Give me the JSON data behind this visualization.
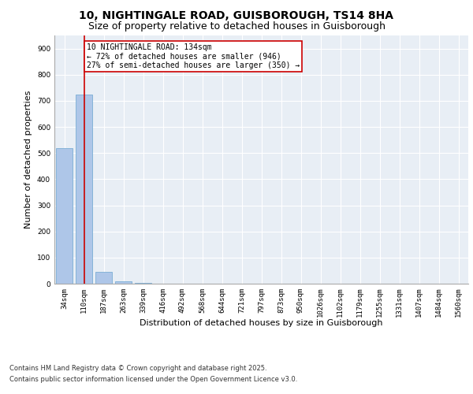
{
  "title_line1": "10, NIGHTINGALE ROAD, GUISBOROUGH, TS14 8HA",
  "title_line2": "Size of property relative to detached houses in Guisborough",
  "xlabel": "Distribution of detached houses by size in Guisborough",
  "ylabel": "Number of detached properties",
  "categories": [
    "34sqm",
    "110sqm",
    "187sqm",
    "263sqm",
    "339sqm",
    "416sqm",
    "492sqm",
    "568sqm",
    "644sqm",
    "721sqm",
    "797sqm",
    "873sqm",
    "950sqm",
    "1026sqm",
    "1102sqm",
    "1179sqm",
    "1255sqm",
    "1331sqm",
    "1407sqm",
    "1484sqm",
    "1560sqm"
  ],
  "values": [
    520,
    725,
    45,
    8,
    2,
    0,
    0,
    0,
    0,
    0,
    0,
    0,
    0,
    0,
    0,
    0,
    0,
    0,
    0,
    0,
    0
  ],
  "bar_color": "#aec6e8",
  "bar_edgecolor": "#7badd4",
  "vline_x": 1,
  "vline_color": "#cc0000",
  "annotation_text": "10 NIGHTINGALE ROAD: 134sqm\n← 72% of detached houses are smaller (946)\n27% of semi-detached houses are larger (350) →",
  "annotation_box_color": "#ffffff",
  "annotation_box_edgecolor": "#cc0000",
  "ylim": [
    0,
    950
  ],
  "yticks": [
    0,
    100,
    200,
    300,
    400,
    500,
    600,
    700,
    800,
    900
  ],
  "background_color": "#e8eef5",
  "footer_line1": "Contains HM Land Registry data © Crown copyright and database right 2025.",
  "footer_line2": "Contains public sector information licensed under the Open Government Licence v3.0.",
  "title_fontsize": 10,
  "subtitle_fontsize": 9,
  "xlabel_fontsize": 8,
  "ylabel_fontsize": 8,
  "tick_fontsize": 6.5,
  "footer_fontsize": 6,
  "annot_fontsize": 7
}
